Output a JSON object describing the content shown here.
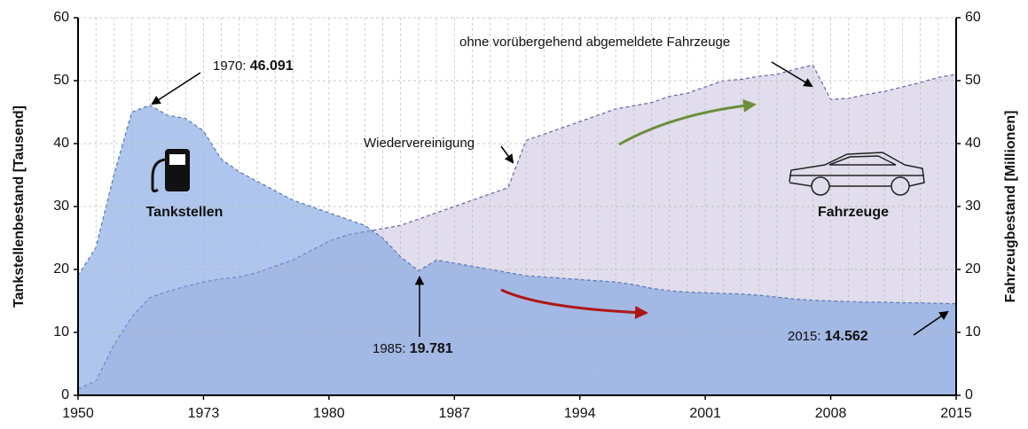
{
  "chart_data": {
    "type": "area",
    "categories": [
      "1950",
      null,
      null,
      null,
      null,
      null,
      null,
      "1973",
      null,
      null,
      null,
      null,
      null,
      null,
      "1980",
      null,
      null,
      null,
      null,
      null,
      null,
      "1987",
      null,
      null,
      null,
      null,
      null,
      null,
      "1994",
      null,
      null,
      null,
      null,
      null,
      null,
      "2001",
      null,
      null,
      null,
      null,
      null,
      null,
      "2008",
      null,
      null,
      null,
      null,
      null,
      null,
      "2015"
    ],
    "series": [
      {
        "name": "Fahrzeuge",
        "axis": "y2",
        "color": "#7767a8",
        "fill": "#e1ddec",
        "values": [
          1,
          2.3,
          8,
          12.5,
          15.5,
          16.5,
          17.3,
          18,
          18.5,
          18.8,
          19.5,
          20.5,
          21.5,
          23,
          24.5,
          25.5,
          26,
          26.5,
          27,
          28,
          29,
          30,
          31,
          32,
          33,
          40.5,
          41.5,
          42.5,
          43.5,
          44.5,
          45.5,
          46,
          46.5,
          47.5,
          48,
          49,
          50,
          50.2,
          50.7,
          51,
          51.8,
          52.5,
          47,
          47.2,
          47.8,
          48.3,
          49,
          49.7,
          50.5,
          51
        ]
      },
      {
        "name": "Tankstellen",
        "axis": "y",
        "color": "#5a7fb8",
        "fill": "rgba(120,160,225,0.6)",
        "values": [
          19,
          23.5,
          35,
          45,
          46.091,
          44.5,
          44,
          42,
          37.5,
          35.5,
          34,
          32.5,
          31,
          30,
          29,
          28,
          27,
          25,
          22,
          19.781,
          21.5,
          21,
          20.5,
          20,
          19.5,
          19,
          18.8,
          18.6,
          18.4,
          18.2,
          18,
          17.6,
          17,
          16.6,
          16.4,
          16.3,
          16.2,
          16.1,
          15.9,
          15.6,
          15.3,
          15.1,
          15,
          14.9,
          14.8,
          14.8,
          14.7,
          14.7,
          14.6,
          14.562
        ]
      }
    ],
    "ylabel": "Tankstellenbestand [Tausend]",
    "y2label": "Fahrzeugbestand [Millionen]",
    "ylim": [
      0,
      60
    ],
    "yticks": [
      0,
      10,
      20,
      30,
      40,
      50,
      60
    ],
    "y2lim": [
      0,
      60
    ],
    "y2ticks": [
      0,
      10,
      20,
      30,
      40,
      50,
      60
    ],
    "grid": true,
    "annotations": [
      {
        "text": "1970: ",
        "bold": "46.091"
      },
      {
        "text": "Wiedervereinigung"
      },
      {
        "text": "ohne vorübergehend abgemeldete Fahrzeuge"
      },
      {
        "text": "1985: ",
        "bold": "19.781"
      },
      {
        "text": "2015: ",
        "bold": "14.562"
      }
    ]
  }
}
